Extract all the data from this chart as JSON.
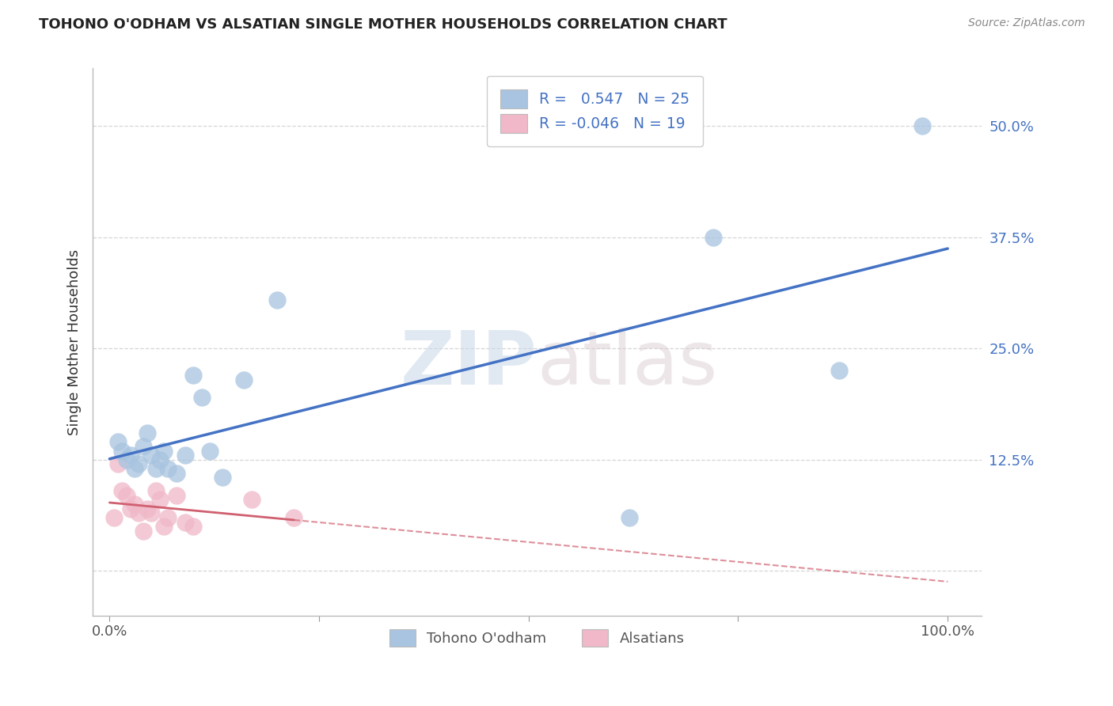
{
  "title": "TOHONO O'ODHAM VS ALSATIAN SINGLE MOTHER HOUSEHOLDS CORRELATION CHART",
  "source": "Source: ZipAtlas.com",
  "ylabel": "Single Mother Households",
  "legend_label1": "Tohono O'odham",
  "legend_label2": "Alsatians",
  "legend_val1": "0.547",
  "legend_N1": "N = 25",
  "legend_val2": "-0.046",
  "legend_N2": "N = 19",
  "color_blue": "#a8c4e0",
  "color_pink": "#f0b8c8",
  "line_color_blue": "#4472c4",
  "line_color_pink": "#d06070",
  "watermark_zip": "ZIP",
  "watermark_atlas": "atlas",
  "x_ticks": [
    0.0,
    0.25,
    0.5,
    0.75,
    1.0
  ],
  "y_ticks": [
    0.0,
    0.125,
    0.25,
    0.375,
    0.5
  ],
  "y_tick_labels": [
    "",
    "12.5%",
    "25.0%",
    "37.5%",
    "50.0%"
  ],
  "tohono_x": [
    0.01,
    0.015,
    0.02,
    0.025,
    0.03,
    0.035,
    0.04,
    0.045,
    0.05,
    0.055,
    0.06,
    0.065,
    0.07,
    0.08,
    0.09,
    0.1,
    0.11,
    0.12,
    0.135,
    0.16,
    0.2,
    0.62,
    0.72,
    0.87,
    0.97
  ],
  "tohono_y": [
    0.145,
    0.135,
    0.125,
    0.13,
    0.115,
    0.12,
    0.14,
    0.155,
    0.13,
    0.115,
    0.125,
    0.135,
    0.115,
    0.11,
    0.13,
    0.22,
    0.195,
    0.135,
    0.105,
    0.215,
    0.305,
    0.06,
    0.375,
    0.225,
    0.5
  ],
  "alsatian_x": [
    0.005,
    0.01,
    0.015,
    0.02,
    0.025,
    0.03,
    0.035,
    0.04,
    0.045,
    0.05,
    0.055,
    0.06,
    0.065,
    0.07,
    0.08,
    0.09,
    0.1,
    0.17,
    0.22
  ],
  "alsatian_y": [
    0.06,
    0.12,
    0.09,
    0.085,
    0.07,
    0.075,
    0.065,
    0.045,
    0.07,
    0.065,
    0.09,
    0.08,
    0.05,
    0.06,
    0.085,
    0.055,
    0.05,
    0.08,
    0.06
  ],
  "xlim": [
    -0.02,
    1.04
  ],
  "ylim": [
    -0.05,
    0.565
  ],
  "pink_solid_xlim": [
    0.0,
    0.22
  ],
  "figsize": [
    14.06,
    8.92
  ],
  "dpi": 100
}
